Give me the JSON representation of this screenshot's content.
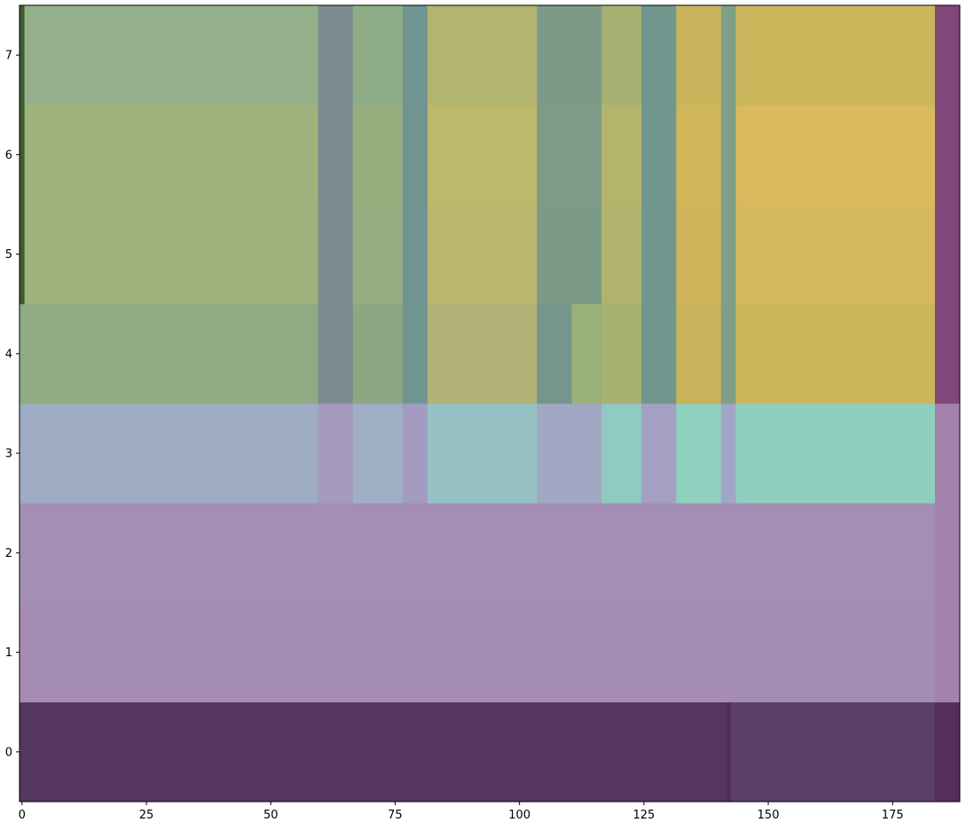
{
  "chart_data": {
    "type": "heatmap",
    "title": "",
    "xlabel": "",
    "ylabel": "",
    "xlim": [
      -0.5,
      188.5
    ],
    "ylim": [
      -0.5,
      7.5
    ],
    "x_ticks": [
      0,
      25,
      50,
      75,
      100,
      125,
      150,
      175
    ],
    "y_ticks": [
      0,
      1,
      2,
      3,
      4,
      5,
      6,
      7
    ],
    "x_tick_labels": [
      "0",
      "25",
      "50",
      "75",
      "100",
      "125",
      "150",
      "175"
    ],
    "y_tick_labels": [
      "0",
      "1",
      "2",
      "3",
      "4",
      "5",
      "6",
      "7"
    ],
    "grid": false,
    "rows": [
      {
        "y": 0,
        "segments": [
          {
            "x": [
              0,
              141
            ],
            "color": "#55365f"
          },
          {
            "x": [
              142,
              142
            ],
            "color": "#4f2f55"
          },
          {
            "x": [
              143,
              183
            ],
            "color": "#593f69"
          },
          {
            "x": [
              184,
              188
            ],
            "color": "#552f5a"
          }
        ]
      },
      {
        "y": 1,
        "segments": [
          {
            "x": [
              0,
              183
            ],
            "color": "#a48cb3"
          },
          {
            "x": [
              184,
              188
            ],
            "color": "#a383ad"
          }
        ]
      },
      {
        "y": 2,
        "segments": [
          {
            "x": [
              0,
              183
            ],
            "color": "#a48eb5"
          },
          {
            "x": [
              184,
              188
            ],
            "color": "#a383ad"
          }
        ]
      },
      {
        "y": 3,
        "segments": [
          {
            "x": [
              0,
              59
            ],
            "color": "#9eacc4"
          },
          {
            "x": [
              60,
              66
            ],
            "color": "#a499bf"
          },
          {
            "x": [
              67,
              76
            ],
            "color": "#9fafc5"
          },
          {
            "x": [
              77,
              81
            ],
            "color": "#a39cc0"
          },
          {
            "x": [
              82,
              103
            ],
            "color": "#96c1c4"
          },
          {
            "x": [
              104,
              116
            ],
            "color": "#a0a8c3"
          },
          {
            "x": [
              117,
              124
            ],
            "color": "#91c9c3"
          },
          {
            "x": [
              125,
              131
            ],
            "color": "#a3a0c2"
          },
          {
            "x": [
              132,
              140
            ],
            "color": "#8fd0be"
          },
          {
            "x": [
              141,
              143
            ],
            "color": "#a0a7c4"
          },
          {
            "x": [
              144,
              183
            ],
            "color": "#8fcfbe"
          },
          {
            "x": [
              184,
              188
            ],
            "color": "#a383ad"
          }
        ]
      },
      {
        "y": 4,
        "segments": [
          {
            "x": [
              0,
              59
            ],
            "color": "#8fab82"
          },
          {
            "x": [
              60,
              66
            ],
            "color": "#7b8c91"
          },
          {
            "x": [
              67,
              76
            ],
            "color": "#8ca782"
          },
          {
            "x": [
              77,
              81
            ],
            "color": "#709591"
          },
          {
            "x": [
              82,
              103
            ],
            "color": "#b2b276"
          },
          {
            "x": [
              104,
              110
            ],
            "color": "#75968c"
          },
          {
            "x": [
              111,
              116
            ],
            "color": "#9ab07b"
          },
          {
            "x": [
              117,
              124
            ],
            "color": "#a9b171"
          },
          {
            "x": [
              125,
              131
            ],
            "color": "#70968e"
          },
          {
            "x": [
              132,
              140
            ],
            "color": "#c8b35a"
          },
          {
            "x": [
              141,
              143
            ],
            "color": "#7fa087"
          },
          {
            "x": [
              144,
              183
            ],
            "color": "#cdb65a"
          },
          {
            "x": [
              184,
              188
            ],
            "color": "#7f4878"
          }
        ]
      },
      {
        "y": 5,
        "segments": [
          {
            "x": [
              0,
              0
            ],
            "color": "#3f5a2f"
          },
          {
            "x": [
              1,
              59
            ],
            "color": "#9eb37d"
          },
          {
            "x": [
              60,
              66
            ],
            "color": "#7b8c91"
          },
          {
            "x": [
              67,
              76
            ],
            "color": "#96ad7f"
          },
          {
            "x": [
              77,
              81
            ],
            "color": "#709591"
          },
          {
            "x": [
              82,
              103
            ],
            "color": "#b9b66f"
          },
          {
            "x": [
              104,
              116
            ],
            "color": "#7d9a88"
          },
          {
            "x": [
              117,
              124
            ],
            "color": "#b0b36e"
          },
          {
            "x": [
              125,
              131
            ],
            "color": "#70968e"
          },
          {
            "x": [
              132,
              140
            ],
            "color": "#cfb45b"
          },
          {
            "x": [
              141,
              143
            ],
            "color": "#7fa087"
          },
          {
            "x": [
              144,
              183
            ],
            "color": "#d6b85e"
          },
          {
            "x": [
              184,
              188
            ],
            "color": "#7f4878"
          }
        ]
      },
      {
        "y": 6,
        "segments": [
          {
            "x": [
              0,
              0
            ],
            "color": "#3f5a2f"
          },
          {
            "x": [
              1,
              59
            ],
            "color": "#9fb47c"
          },
          {
            "x": [
              60,
              66
            ],
            "color": "#7b8c91"
          },
          {
            "x": [
              67,
              76
            ],
            "color": "#98ae7e"
          },
          {
            "x": [
              77,
              81
            ],
            "color": "#709591"
          },
          {
            "x": [
              82,
              103
            ],
            "color": "#bdb86c"
          },
          {
            "x": [
              104,
              116
            ],
            "color": "#7f9b87"
          },
          {
            "x": [
              117,
              124
            ],
            "color": "#b4b56c"
          },
          {
            "x": [
              125,
              131
            ],
            "color": "#70968e"
          },
          {
            "x": [
              132,
              140
            ],
            "color": "#d2b65a"
          },
          {
            "x": [
              141,
              143
            ],
            "color": "#7fa087"
          },
          {
            "x": [
              144,
              183
            ],
            "color": "#d9ba5d"
          },
          {
            "x": [
              184,
              188
            ],
            "color": "#7f4878"
          }
        ]
      },
      {
        "y": 7,
        "segments": [
          {
            "x": [
              0,
              0
            ],
            "color": "#3f5a2f"
          },
          {
            "x": [
              1,
              59
            ],
            "color": "#94b08a"
          },
          {
            "x": [
              60,
              66
            ],
            "color": "#7b8c91"
          },
          {
            "x": [
              67,
              76
            ],
            "color": "#8ead86"
          },
          {
            "x": [
              77,
              81
            ],
            "color": "#709591"
          },
          {
            "x": [
              82,
              103
            ],
            "color": "#b2b46f"
          },
          {
            "x": [
              104,
              116
            ],
            "color": "#7d9a88"
          },
          {
            "x": [
              117,
              124
            ],
            "color": "#a8b172"
          },
          {
            "x": [
              125,
              131
            ],
            "color": "#70968e"
          },
          {
            "x": [
              132,
              140
            ],
            "color": "#c9b45c"
          },
          {
            "x": [
              141,
              143
            ],
            "color": "#7fa087"
          },
          {
            "x": [
              144,
              183
            ],
            "color": "#ccb65b"
          },
          {
            "x": [
              184,
              188
            ],
            "color": "#7f4878"
          }
        ]
      }
    ]
  }
}
